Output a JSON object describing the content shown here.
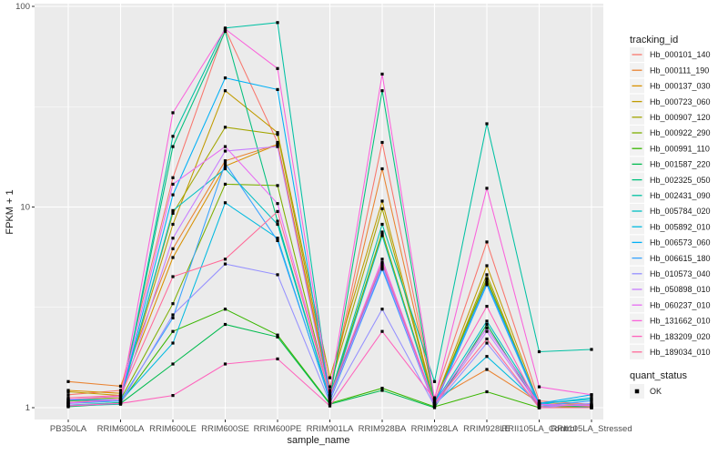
{
  "figure": {
    "panel_bg": "#EBEBEB",
    "grid_color": "#FFFFFF",
    "tick_color": "#333333",
    "tick_label_color": "#4D4D4D",
    "title_color": "#1A1A1A",
    "legend_key_bg": "#F2F2F2",
    "point_color": "#000000"
  },
  "chart_data": {
    "type": "line",
    "title": "",
    "xlabel": "sample_name",
    "ylabel": "FPKM + 1",
    "y_scale": "log10",
    "y_ticks": [
      "1",
      "10",
      "100"
    ],
    "ylim": [
      0.95,
      110
    ],
    "grid": true,
    "legend_position": "right",
    "categories": [
      "PB350LA",
      "RRIM600LA",
      "RRIM600LE",
      "RRIM600SE",
      "RRIM600PE",
      "RRIM901LA",
      "RRIM928BA",
      "RRIM928LA",
      "RRIM928LE",
      "RRII105LA_Control",
      "RRII105LA_Stressed"
    ],
    "series": [
      {
        "name": "Hb_000101_140",
        "color": "#F8766D",
        "values": [
          1.16,
          1.22,
          14,
          77,
          21,
          1.18,
          21,
          1.12,
          6.7,
          1.08,
          1.04
        ]
      },
      {
        "name": "Hb_000111_190",
        "color": "#EA8331",
        "values": [
          1.35,
          1.28,
          6.2,
          17,
          20.5,
          1.22,
          15.5,
          1.1,
          1.55,
          1.06,
          1.03
        ]
      },
      {
        "name": "Hb_000137_030",
        "color": "#D89000",
        "values": [
          1.22,
          1.18,
          5.6,
          16,
          20.5,
          1.15,
          7.3,
          1.08,
          4.3,
          1.04,
          1.02
        ]
      },
      {
        "name": "Hb_000723_060",
        "color": "#C09B00",
        "values": [
          1.2,
          1.15,
          8.2,
          38,
          23.5,
          1.41,
          10.7,
          1.06,
          5.1,
          1.04,
          1.01
        ]
      },
      {
        "name": "Hb_000907_120",
        "color": "#A3A500",
        "values": [
          1.1,
          1.12,
          9.3,
          25,
          23,
          1.27,
          9.8,
          1.05,
          4.6,
          1.02,
          1.01
        ]
      },
      {
        "name": "Hb_000922_290",
        "color": "#7CAE00",
        "values": [
          1.08,
          1.1,
          3.3,
          13,
          12.8,
          1.12,
          7.5,
          1.05,
          4.4,
          1.02,
          1.0
        ]
      },
      {
        "name": "Hb_000991_110",
        "color": "#39B600",
        "values": [
          1.02,
          1.06,
          2.4,
          3.1,
          2.3,
          1.05,
          1.25,
          1.01,
          1.2,
          1.0,
          1.0
        ]
      },
      {
        "name": "Hb_001587_220",
        "color": "#00BB4E",
        "values": [
          1.01,
          1.05,
          1.65,
          2.6,
          2.25,
          1.04,
          1.22,
          1.0,
          2.6,
          1.0,
          1.0
        ]
      },
      {
        "name": "Hb_002325_050",
        "color": "#00BF7D",
        "values": [
          1.03,
          1.06,
          20,
          75,
          8.5,
          1.1,
          38,
          1.04,
          2.5,
          1.05,
          1.0
        ]
      },
      {
        "name": "Hb_002431_090",
        "color": "#00C1A3",
        "values": [
          1.02,
          1.04,
          22.5,
          78,
          83,
          1.14,
          8.2,
          1.35,
          26,
          1.9,
          1.95
        ]
      },
      {
        "name": "Hb_005784_020",
        "color": "#00BFC4",
        "values": [
          1.06,
          1.1,
          9.6,
          15.5,
          8.2,
          1.1,
          7.2,
          1.05,
          2.7,
          1.05,
          1.1
        ]
      },
      {
        "name": "Hb_005892_010",
        "color": "#00BAE0",
        "values": [
          1.05,
          1.08,
          2.1,
          10.5,
          7.0,
          1.08,
          5.0,
          1.04,
          1.8,
          1.04,
          1.12
        ]
      },
      {
        "name": "Hb_006573_060",
        "color": "#00B0F6",
        "values": [
          1.09,
          1.1,
          11.5,
          44,
          38.5,
          1.12,
          5.2,
          1.05,
          4.2,
          1.05,
          1.16
        ]
      },
      {
        "name": "Hb_006615_180",
        "color": "#35A2FF",
        "values": [
          1.06,
          1.08,
          2.8,
          16.5,
          6.8,
          1.1,
          4.9,
          1.02,
          4.1,
          1.02,
          1.08
        ]
      },
      {
        "name": "Hb_010573_040",
        "color": "#9590FF",
        "values": [
          1.03,
          1.05,
          2.9,
          5.2,
          4.6,
          1.06,
          3.1,
          1.02,
          2.1,
          1.0,
          1.05
        ]
      },
      {
        "name": "Hb_050898_010",
        "color": "#C77CFF",
        "values": [
          1.05,
          1.1,
          7.0,
          19,
          20,
          1.1,
          5.1,
          1.02,
          2.4,
          1.02,
          1.03
        ]
      },
      {
        "name": "Hb_060237_010",
        "color": "#E76BF3",
        "values": [
          1.1,
          1.14,
          13,
          20,
          10.4,
          1.15,
          5.5,
          1.05,
          2.5,
          1.04,
          1.02
        ]
      },
      {
        "name": "Hb_131662_010",
        "color": "#FA62DB",
        "values": [
          1.06,
          1.1,
          29.5,
          77,
          49,
          1.2,
          46,
          1.1,
          12.4,
          1.27,
          1.16
        ]
      },
      {
        "name": "Hb_183209_020",
        "color": "#FF62BC",
        "values": [
          1.02,
          1.05,
          1.15,
          1.65,
          1.75,
          1.02,
          2.4,
          1.1,
          3.2,
          1.0,
          1.0
        ]
      },
      {
        "name": "Hb_189034_010",
        "color": "#FF6A98",
        "values": [
          1.12,
          1.15,
          4.5,
          5.5,
          9.5,
          1.15,
          5.3,
          1.05,
          2.2,
          1.0,
          1.0
        ]
      }
    ],
    "points": {
      "shape": "square",
      "color": "#000000"
    },
    "legend": {
      "color_legend": {
        "title": "tracking_id"
      },
      "shape_legend": {
        "title": "quant_status",
        "entries": [
          {
            "label": "OK",
            "shape": "square",
            "color": "#000000"
          }
        ]
      }
    }
  }
}
